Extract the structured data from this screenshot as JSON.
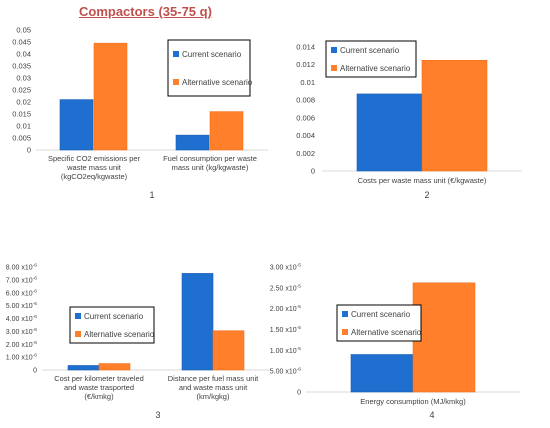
{
  "title": "Compactors (35-75 q)",
  "colors": {
    "current": "#1f6fd0",
    "alternative": "#ff7f2a"
  },
  "chart_data": [
    {
      "type": "bar",
      "id": "panel-1",
      "panel_label": "1",
      "categories": [
        [
          "Specific CO2 emissions per",
          "waste mass unit",
          "(kgCO2eq/kgwaste)"
        ],
        [
          "Fuel consumption per waste",
          "mass unit (kg/kgwaste)"
        ]
      ],
      "series": [
        {
          "name": "Current scenario",
          "values": [
            0.021,
            0.0062
          ]
        },
        {
          "name": "Alternative scenario",
          "values": [
            0.0445,
            0.016
          ]
        }
      ],
      "ylim": [
        0,
        0.05
      ],
      "yticks": [
        0,
        0.005,
        0.01,
        0.015,
        0.02,
        0.025,
        0.03,
        0.035,
        0.04,
        0.045,
        0.05
      ],
      "yticklabels": [
        "0",
        "0.005",
        "0.01",
        "0.015",
        "0.02",
        "0.025",
        "0.03",
        "0.035",
        "0.04",
        "0.045",
        "0.05"
      ],
      "legend": "top-right"
    },
    {
      "type": "bar",
      "id": "panel-2",
      "panel_label": "2",
      "categories": [
        [
          "Costs per waste mass unit (€/kgwaste)"
        ]
      ],
      "series": [
        {
          "name": "Current scenario",
          "values": [
            0.0087
          ]
        },
        {
          "name": "Alternative scenario",
          "values": [
            0.0125
          ]
        }
      ],
      "ylim": [
        0,
        0.014
      ],
      "yticks": [
        0,
        0.002,
        0.004,
        0.006,
        0.008,
        0.01,
        0.012,
        0.014
      ],
      "yticklabels": [
        "0",
        "0.002",
        "0.004",
        "0.006",
        "0.008",
        "0.01",
        "0.012",
        "0.014"
      ],
      "legend": "top-left"
    },
    {
      "type": "bar",
      "id": "panel-3",
      "panel_label": "3",
      "categories": [
        [
          "Cost per kilometer traveled",
          "and waste trasported",
          "(€/kmkg)"
        ],
        [
          "Distance per fuel mass unit",
          "and waste mass unit",
          "(km/kgkg)"
        ]
      ],
      "series": [
        {
          "name": "Current scenario",
          "values": [
            3.5e-07,
            7.5e-06
          ]
        },
        {
          "name": "Alternative scenario",
          "values": [
            5e-07,
            3.05e-06
          ]
        }
      ],
      "ylim": [
        0,
        8e-06
      ],
      "yticks": [
        0,
        1e-06,
        2e-06,
        3e-06,
        4e-06,
        5e-06,
        6e-06,
        7e-06,
        8e-06
      ],
      "yticklabels": [
        [
          "0",
          ""
        ],
        [
          "1.00 x10",
          "-6"
        ],
        [
          "2.00 x10",
          "-6"
        ],
        [
          "3.00 x10",
          "-6"
        ],
        [
          "4.00 x10",
          "-6"
        ],
        [
          "5.00 x10",
          "-6"
        ],
        [
          "6.00 x10",
          "-6"
        ],
        [
          "7.00 x10",
          "-6"
        ],
        [
          "8.00 x10",
          "-6"
        ]
      ],
      "legend": "center-left"
    },
    {
      "type": "bar",
      "id": "panel-4",
      "panel_label": "4",
      "categories": [
        [
          "Energy consumption (MJ/kmkg)"
        ]
      ],
      "series": [
        {
          "name": "Current scenario",
          "values": [
            9e-06
          ]
        },
        {
          "name": "Alternative scenario",
          "values": [
            2.62e-05
          ]
        }
      ],
      "ylim": [
        0,
        3e-05
      ],
      "yticks": [
        0,
        5e-06,
        1e-05,
        1.5e-05,
        2e-05,
        2.5e-05,
        3e-05
      ],
      "yticklabels": [
        [
          "0",
          ""
        ],
        [
          "5.00 x10",
          "-6"
        ],
        [
          "1.00 x10",
          "-5"
        ],
        [
          "1.50 x10",
          "-5"
        ],
        [
          "2.00 x10",
          "-5"
        ],
        [
          "2.50 x10",
          "-5"
        ],
        [
          "3.00 x10",
          "-5"
        ]
      ],
      "legend": "center-left"
    }
  ]
}
